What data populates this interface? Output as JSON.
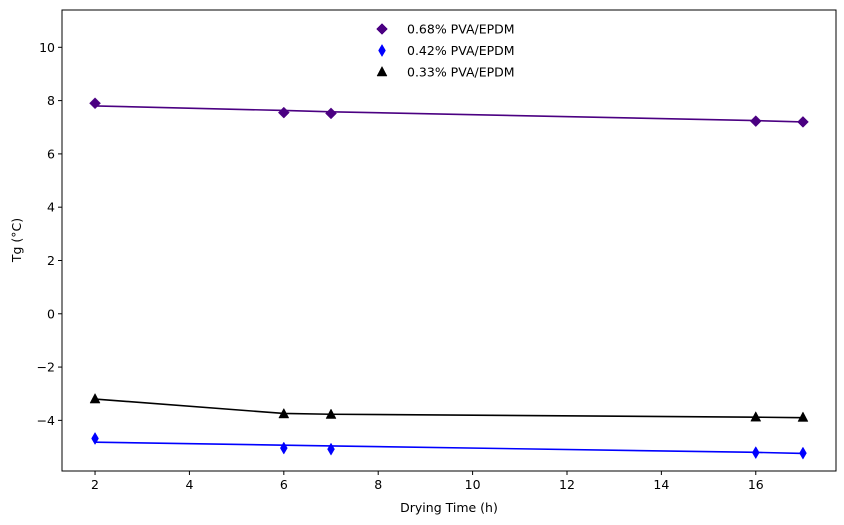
{
  "chart_data": {
    "type": "scatter",
    "title": "",
    "xlabel": "Drying Time (h)",
    "ylabel": "Tg (°C)",
    "xlim": [
      1.3,
      17.7
    ],
    "ylim": [
      -5.9,
      11.4
    ],
    "xticks": [
      2,
      4,
      6,
      8,
      10,
      12,
      14,
      16
    ],
    "yticks": [
      -4,
      -2,
      0,
      2,
      4,
      6,
      8,
      10
    ],
    "grid": false,
    "legend_position": "top-center",
    "series": [
      {
        "name": "0.68% PVA/EPDM",
        "marker": "diamond",
        "color": "#4B0082",
        "points": {
          "x": [
            2,
            6,
            7,
            16,
            17
          ],
          "y": [
            7.9,
            7.55,
            7.52,
            7.23,
            7.2
          ]
        },
        "fit": {
          "x": [
            2,
            6,
            7,
            16,
            17
          ],
          "y": [
            7.8,
            7.63,
            7.58,
            7.25,
            7.2
          ]
        }
      },
      {
        "name": "0.42% PVA/EPDM",
        "marker": "thin_diamond",
        "color": "#0000FF",
        "points": {
          "x": [
            2,
            6,
            7,
            16,
            17
          ],
          "y": [
            -4.68,
            -5.04,
            -5.08,
            -5.21,
            -5.23
          ]
        },
        "fit": {
          "x": [
            2,
            6,
            7,
            16,
            17
          ],
          "y": [
            -4.82,
            -4.93,
            -4.96,
            -5.2,
            -5.24
          ]
        }
      },
      {
        "name": "0.33% PVA/EPDM",
        "marker": "triangle",
        "color": "#000000",
        "points": {
          "x": [
            2,
            6,
            7,
            16,
            17
          ],
          "y": [
            -3.2,
            -3.76,
            -3.78,
            -3.88,
            -3.89
          ]
        },
        "fit": {
          "x": [
            2,
            6,
            7,
            16,
            17
          ],
          "y": [
            -3.2,
            -3.74,
            -3.77,
            -3.88,
            -3.9
          ]
        }
      }
    ]
  }
}
